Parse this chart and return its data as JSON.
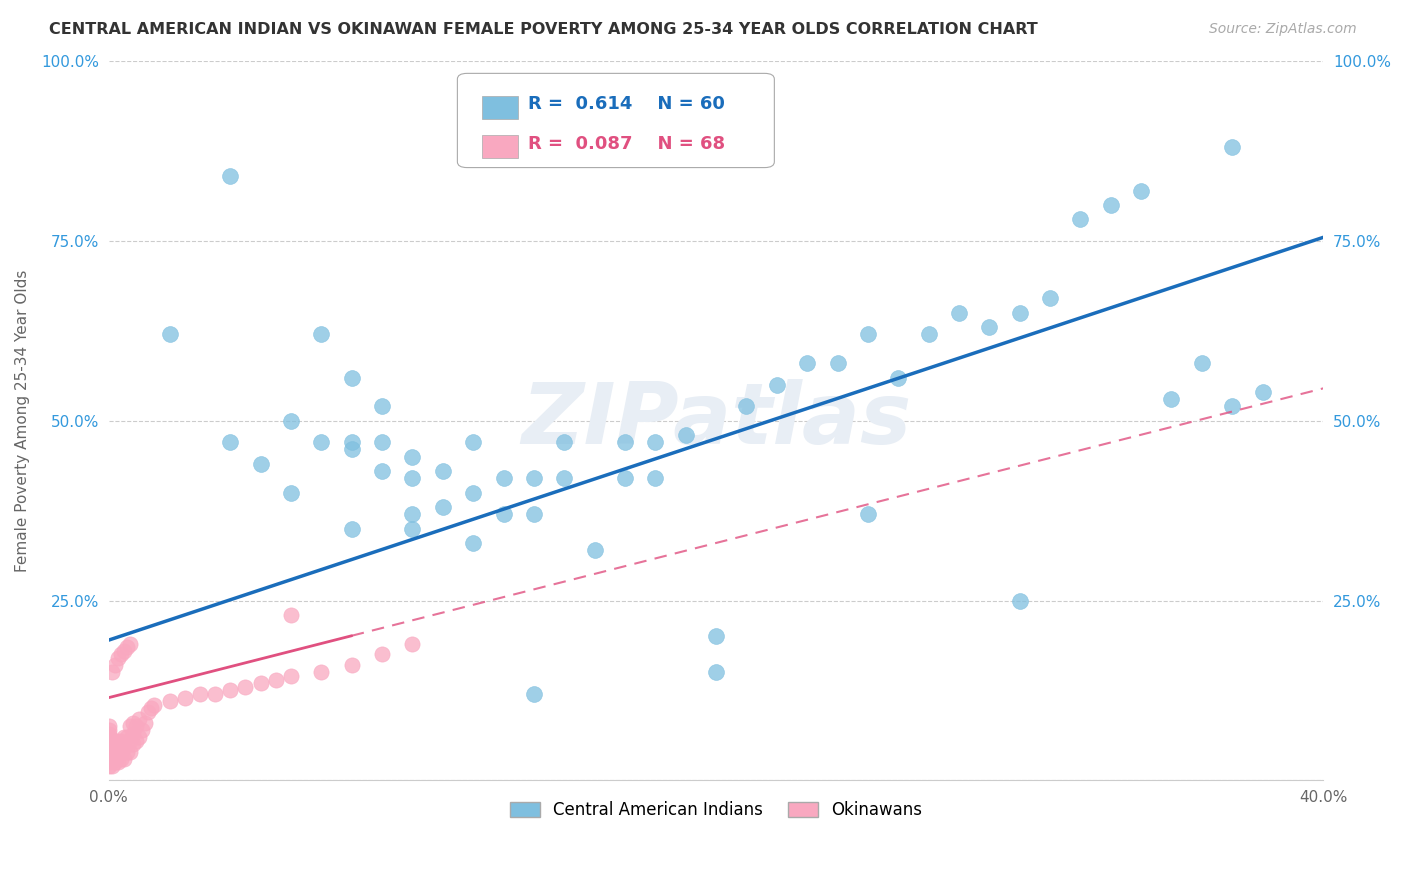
{
  "title": "CENTRAL AMERICAN INDIAN VS OKINAWAN FEMALE POVERTY AMONG 25-34 YEAR OLDS CORRELATION CHART",
  "source": "Source: ZipAtlas.com",
  "ylabel_label": "Female Poverty Among 25-34 Year Olds",
  "xlim": [
    0.0,
    0.4
  ],
  "ylim": [
    0.0,
    1.0
  ],
  "xticks": [
    0.0,
    0.1,
    0.2,
    0.3,
    0.4
  ],
  "yticks": [
    0.0,
    0.25,
    0.5,
    0.75,
    1.0
  ],
  "xticklabels": [
    "0.0%",
    "",
    "",
    "",
    "40.0%"
  ],
  "yticklabels": [
    "",
    "25.0%",
    "50.0%",
    "75.0%",
    "100.0%"
  ],
  "R_blue": 0.614,
  "N_blue": 60,
  "R_pink": 0.087,
  "N_pink": 68,
  "blue_color": "#7fbfdf",
  "pink_color": "#f9a8c0",
  "trend_blue_color": "#1a6dbb",
  "trend_pink_color": "#e05080",
  "watermark": "ZIPatlas",
  "legend_label_blue": "Central American Indians",
  "legend_label_pink": "Okinawans",
  "blue_x": [
    0.02,
    0.04,
    0.05,
    0.06,
    0.07,
    0.07,
    0.08,
    0.08,
    0.08,
    0.09,
    0.09,
    0.09,
    0.1,
    0.1,
    0.1,
    0.11,
    0.11,
    0.12,
    0.12,
    0.13,
    0.13,
    0.14,
    0.14,
    0.15,
    0.15,
    0.16,
    0.17,
    0.17,
    0.18,
    0.18,
    0.19,
    0.2,
    0.21,
    0.22,
    0.23,
    0.24,
    0.25,
    0.26,
    0.27,
    0.28,
    0.29,
    0.3,
    0.31,
    0.32,
    0.33,
    0.34,
    0.35,
    0.36,
    0.37,
    0.38,
    0.04,
    0.06,
    0.08,
    0.1,
    0.12,
    0.14,
    0.2,
    0.25,
    0.3,
    0.37
  ],
  "blue_y": [
    0.62,
    0.84,
    0.44,
    0.5,
    0.47,
    0.62,
    0.47,
    0.46,
    0.56,
    0.43,
    0.47,
    0.52,
    0.37,
    0.42,
    0.45,
    0.38,
    0.43,
    0.4,
    0.47,
    0.37,
    0.42,
    0.37,
    0.42,
    0.42,
    0.47,
    0.32,
    0.42,
    0.47,
    0.42,
    0.47,
    0.48,
    0.15,
    0.52,
    0.55,
    0.58,
    0.58,
    0.62,
    0.56,
    0.62,
    0.65,
    0.63,
    0.65,
    0.67,
    0.78,
    0.8,
    0.82,
    0.53,
    0.58,
    0.52,
    0.54,
    0.47,
    0.4,
    0.35,
    0.35,
    0.33,
    0.12,
    0.2,
    0.37,
    0.25,
    0.88
  ],
  "pink_x": [
    0.0,
    0.0,
    0.0,
    0.0,
    0.0,
    0.0,
    0.0,
    0.0,
    0.0,
    0.0,
    0.0,
    0.0,
    0.001,
    0.001,
    0.001,
    0.001,
    0.002,
    0.002,
    0.002,
    0.002,
    0.003,
    0.003,
    0.003,
    0.003,
    0.004,
    0.004,
    0.004,
    0.005,
    0.005,
    0.005,
    0.006,
    0.006,
    0.007,
    0.007,
    0.007,
    0.008,
    0.008,
    0.008,
    0.009,
    0.009,
    0.01,
    0.01,
    0.011,
    0.012,
    0.013,
    0.014,
    0.015,
    0.02,
    0.025,
    0.03,
    0.035,
    0.04,
    0.045,
    0.05,
    0.055,
    0.06,
    0.07,
    0.08,
    0.09,
    0.1,
    0.001,
    0.002,
    0.003,
    0.004,
    0.005,
    0.006,
    0.007,
    0.06
  ],
  "pink_y": [
    0.02,
    0.025,
    0.03,
    0.035,
    0.04,
    0.045,
    0.05,
    0.055,
    0.06,
    0.065,
    0.07,
    0.075,
    0.02,
    0.03,
    0.04,
    0.05,
    0.025,
    0.035,
    0.045,
    0.055,
    0.025,
    0.035,
    0.045,
    0.055,
    0.03,
    0.04,
    0.055,
    0.03,
    0.045,
    0.06,
    0.04,
    0.06,
    0.04,
    0.055,
    0.075,
    0.05,
    0.065,
    0.08,
    0.055,
    0.075,
    0.06,
    0.085,
    0.07,
    0.08,
    0.095,
    0.1,
    0.105,
    0.11,
    0.115,
    0.12,
    0.12,
    0.125,
    0.13,
    0.135,
    0.14,
    0.145,
    0.15,
    0.16,
    0.175,
    0.19,
    0.15,
    0.16,
    0.17,
    0.175,
    0.18,
    0.185,
    0.19,
    0.23
  ],
  "blue_trend_x0": 0.0,
  "blue_trend_y0": 0.195,
  "blue_trend_x1": 0.4,
  "blue_trend_y1": 0.755,
  "pink_trend_x0": 0.0,
  "pink_trend_y0": 0.115,
  "pink_trend_x1": 0.4,
  "pink_trend_y1": 0.545
}
